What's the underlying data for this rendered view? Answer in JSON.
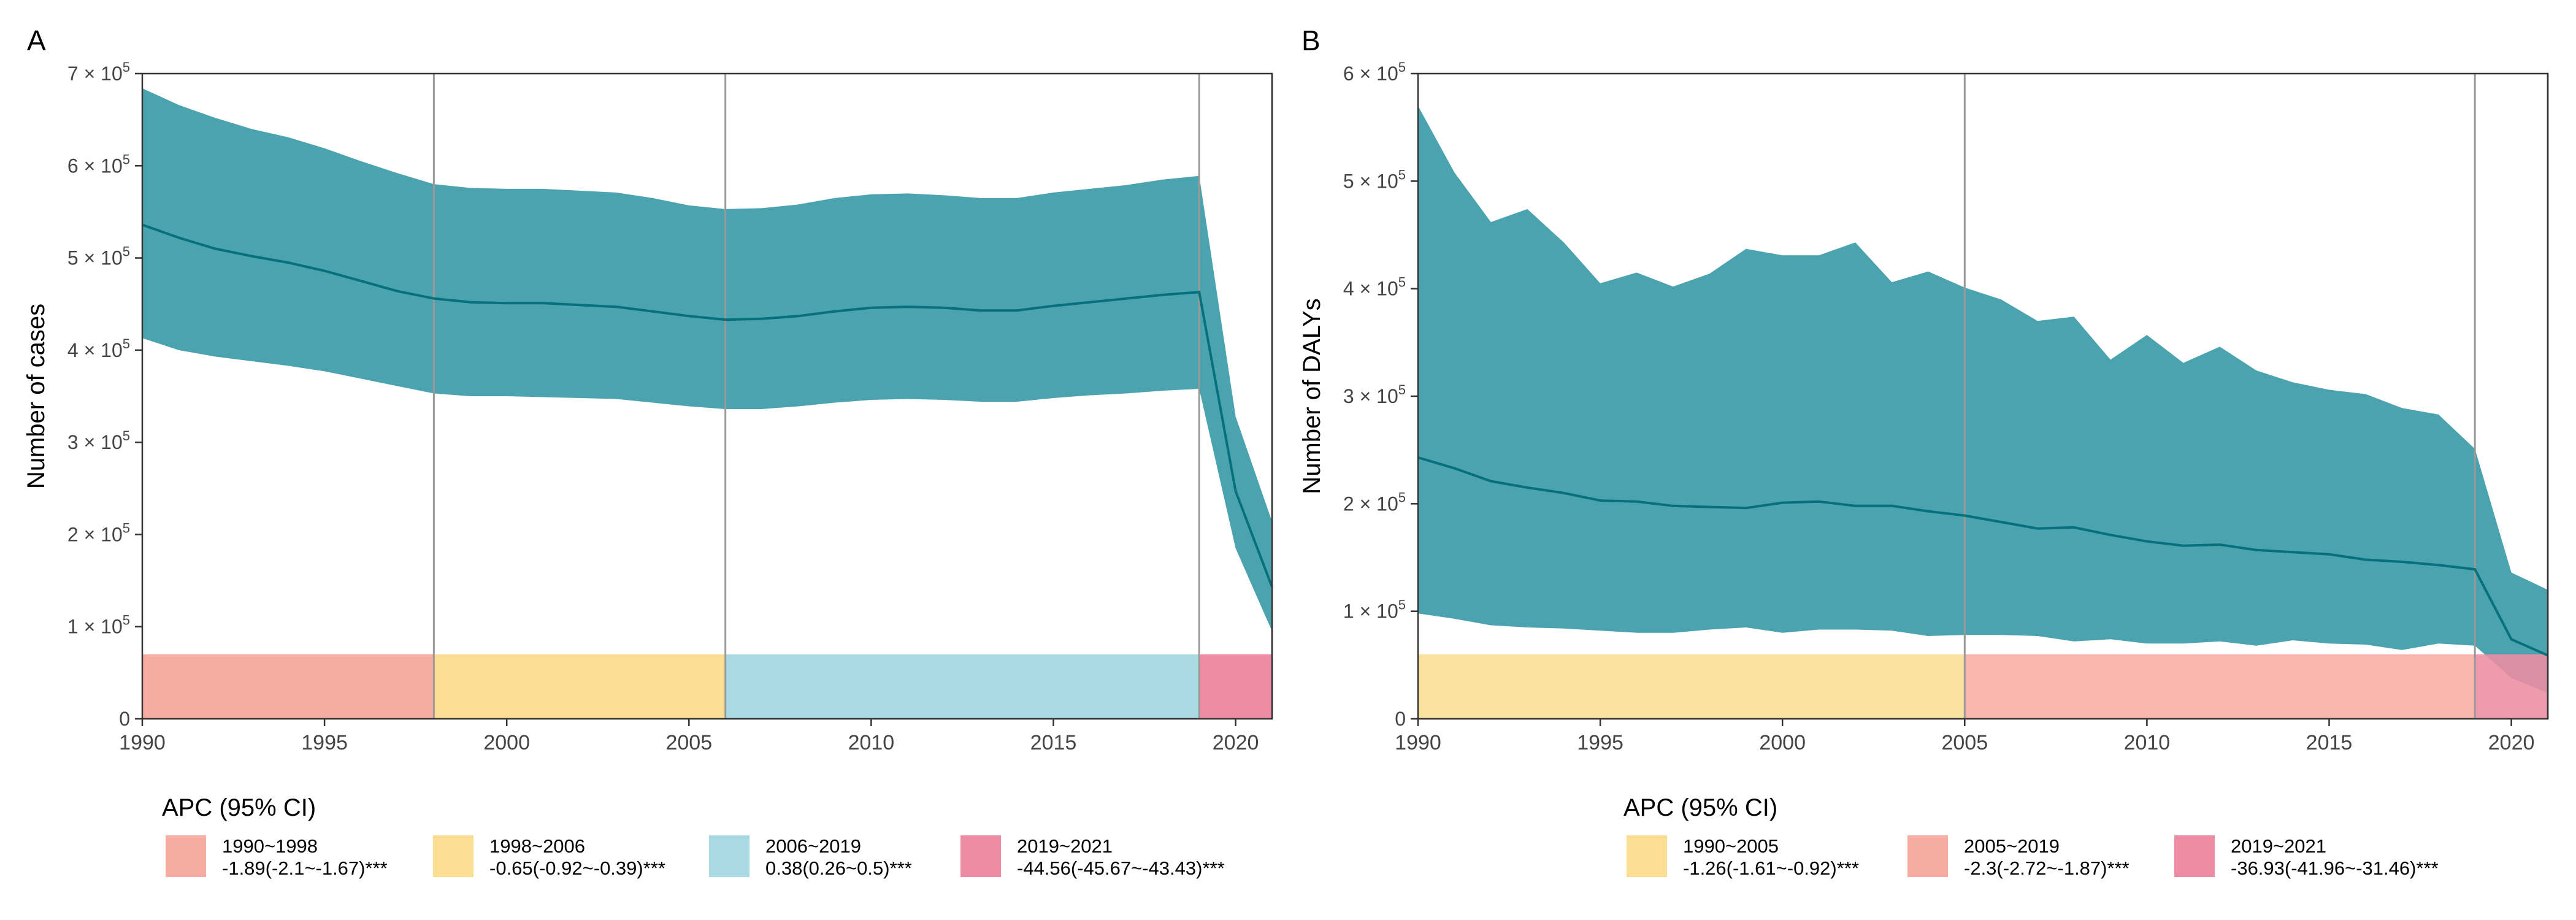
{
  "colors": {
    "band": "#0e8493",
    "line": "#06707c",
    "vline": "#9a9a9a",
    "frame": "#333333",
    "apc_1990_1998": "#f7aca2",
    "apc_1998_2006": "#fbde92",
    "apc_2006_2019": "#a9dae3",
    "apc_2019_2021": "#ee8ca3",
    "apc_1990_2005": "#fbde92",
    "apc_2005_2019": "#f7aca2"
  },
  "chart_data": [
    {
      "type": "area",
      "panel_label": "A",
      "title": "",
      "xlabel": "",
      "ylabel": "Number of cases",
      "xlim": [
        1990,
        2021
      ],
      "ylim": [
        0,
        700000
      ],
      "x_ticks": [
        1990,
        1995,
        2000,
        2005,
        2010,
        2015,
        2020
      ],
      "x_tick_labels": [
        "1990",
        "1995",
        "2000",
        "2005",
        "2010",
        "2015",
        "2020"
      ],
      "y_ticks": [
        0,
        100000,
        200000,
        300000,
        400000,
        500000,
        600000,
        700000
      ],
      "y_tick_mantissa": [
        "0",
        "1",
        "2",
        "3",
        "4",
        "5",
        "6",
        "7"
      ],
      "y_tick_sep": "× 10",
      "y_tick_exp": "5",
      "grid": false,
      "joinpoints": [
        1998,
        2006,
        2019,
        2021
      ],
      "x": [
        1990,
        1991,
        1992,
        1993,
        1994,
        1995,
        1996,
        1997,
        1998,
        1999,
        2000,
        2001,
        2002,
        2003,
        2004,
        2005,
        2006,
        2007,
        2008,
        2009,
        2010,
        2011,
        2012,
        2013,
        2014,
        2015,
        2016,
        2017,
        2018,
        2019,
        2020,
        2021
      ],
      "series": [
        {
          "name": "",
          "values": [
            536000,
            522000,
            510000,
            502000,
            495000,
            486000,
            475000,
            464000,
            456000,
            452000,
            451000,
            451000,
            449000,
            447000,
            442000,
            437000,
            433000,
            434000,
            437000,
            442000,
            446000,
            447000,
            446000,
            443000,
            443000,
            448000,
            452000,
            456000,
            460000,
            463000,
            247000,
            143000
          ],
          "lower": [
            413000,
            400000,
            393000,
            388000,
            383000,
            377000,
            369000,
            361000,
            353000,
            350000,
            350000,
            349000,
            348000,
            347000,
            343000,
            339000,
            336000,
            336000,
            339000,
            343000,
            346000,
            347000,
            346000,
            344000,
            344000,
            348000,
            351000,
            353000,
            356000,
            358000,
            185000,
            95000
          ],
          "upper": [
            684000,
            666000,
            652000,
            640000,
            631000,
            619000,
            605000,
            592000,
            580000,
            576000,
            575000,
            575000,
            573000,
            571000,
            565000,
            557000,
            553000,
            554000,
            558000,
            565000,
            569000,
            570000,
            568000,
            565000,
            565000,
            571000,
            575000,
            579000,
            585000,
            589000,
            328000,
            214000
          ]
        }
      ],
      "legend": {
        "title": "APC (95% CI)",
        "placement": "bottom",
        "items": [
          {
            "period": "1990~1998",
            "apc": "-1.89(-2.1~-1.67)***",
            "color_key": "apc_1990_1998",
            "start": 1990,
            "end": 1998
          },
          {
            "period": "1998~2006",
            "apc": "-0.65(-0.92~-0.39)***",
            "color_key": "apc_1998_2006",
            "start": 1998,
            "end": 2006
          },
          {
            "period": "2006~2019",
            "apc": "0.38(0.26~0.5)***",
            "color_key": "apc_2006_2019",
            "start": 2006,
            "end": 2019
          },
          {
            "period": "2019~2021",
            "apc": "-44.56(-45.67~-43.43)***",
            "color_key": "apc_2019_2021",
            "start": 2019,
            "end": 2021
          }
        ]
      },
      "strip_top": 70000,
      "strip_above_area": false
    },
    {
      "type": "area",
      "panel_label": "B",
      "title": "",
      "xlabel": "",
      "ylabel": "Number of DALYs",
      "xlim": [
        1990,
        2021
      ],
      "ylim": [
        0,
        600000
      ],
      "x_ticks": [
        1990,
        1995,
        2000,
        2005,
        2010,
        2015,
        2020
      ],
      "x_tick_labels": [
        "1990",
        "1995",
        "2000",
        "2005",
        "2010",
        "2015",
        "2020"
      ],
      "y_ticks": [
        0,
        100000,
        200000,
        300000,
        400000,
        500000,
        600000
      ],
      "y_tick_mantissa": [
        "0",
        "1",
        "2",
        "3",
        "4",
        "5",
        "6"
      ],
      "y_tick_sep": "× 10",
      "y_tick_exp": "5",
      "grid": false,
      "joinpoints": [
        2005,
        2019,
        2021
      ],
      "x": [
        1990,
        1991,
        1992,
        1993,
        1994,
        1995,
        1996,
        1997,
        1998,
        1999,
        2000,
        2001,
        2002,
        2003,
        2004,
        2005,
        2006,
        2007,
        2008,
        2009,
        2010,
        2011,
        2012,
        2013,
        2014,
        2015,
        2016,
        2017,
        2018,
        2019,
        2020,
        2021
      ],
      "series": [
        {
          "name": "",
          "values": [
            243000,
            233000,
            221000,
            215000,
            210000,
            203000,
            202000,
            198000,
            197000,
            196000,
            201000,
            202000,
            198000,
            198000,
            193000,
            189000,
            183000,
            177000,
            178000,
            171000,
            165000,
            161000,
            162000,
            157000,
            155000,
            153000,
            148000,
            146000,
            143000,
            139000,
            74000,
            59000
          ],
          "lower": [
            98000,
            93000,
            87000,
            85000,
            84000,
            82000,
            80000,
            80000,
            83000,
            85000,
            80000,
            83000,
            83000,
            82000,
            77000,
            78000,
            78000,
            77000,
            72000,
            74000,
            70000,
            70000,
            72000,
            68000,
            73000,
            70000,
            69000,
            64000,
            70000,
            68000,
            38000,
            24000
          ],
          "upper": [
            570000,
            508000,
            462000,
            474000,
            443000,
            405000,
            415000,
            402000,
            414000,
            437000,
            431000,
            431000,
            443000,
            406000,
            416000,
            401000,
            390000,
            370000,
            374000,
            334000,
            357000,
            331000,
            346000,
            324000,
            313000,
            306000,
            302000,
            289000,
            283000,
            251000,
            136000,
            120000
          ]
        }
      ],
      "legend": {
        "title": "APC (95% CI)",
        "placement": "bottom",
        "items": [
          {
            "period": "1990~2005",
            "apc": "-1.26(-1.61~-0.92)***",
            "color_key": "apc_1990_2005",
            "start": 1990,
            "end": 2005
          },
          {
            "period": "2005~2019",
            "apc": "-2.3(-2.72~-1.87)***",
            "color_key": "apc_2005_2019",
            "start": 2005,
            "end": 2019
          },
          {
            "period": "2019~2021",
            "apc": "-36.93(-41.96~-31.46)***",
            "color_key": "apc_2019_2021",
            "start": 2019,
            "end": 2021
          }
        ]
      },
      "strip_top": 60000,
      "strip_above_area": true
    }
  ]
}
